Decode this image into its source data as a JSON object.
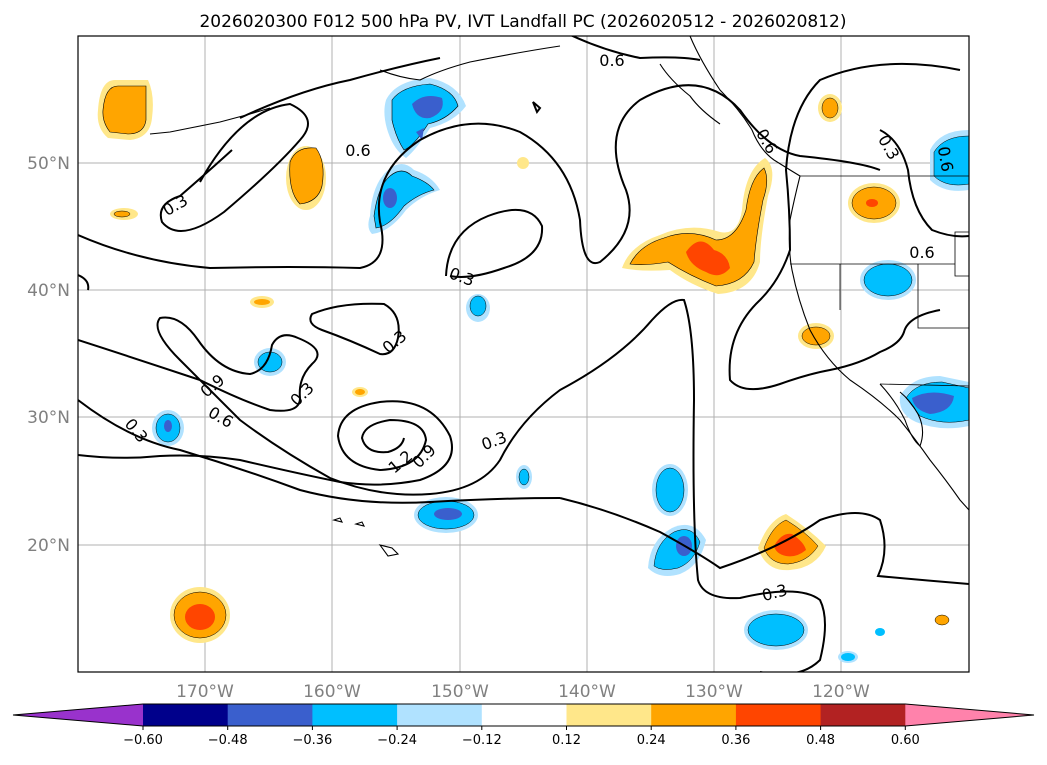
{
  "title": "2026020300 F012 500 hPa PV, IVT Landfall PC (2026020512 - 2026020812)",
  "lat_labels": [
    "50°N",
    "40°N",
    "30°N",
    "20°N"
  ],
  "lon_labels": [
    "170°W",
    "160°W",
    "150°W",
    "140°W",
    "130°W",
    "120°W"
  ],
  "contour_labels": [
    "0.6",
    "0.6",
    "0.6",
    "0.6",
    "0.6",
    "0.3",
    "0.3",
    "0.3",
    "0.3",
    "0.3",
    "0.3",
    "0.3",
    "0.3",
    "0.9",
    "0.9",
    "0.6",
    "1.2",
    "0.3",
    "0.3"
  ],
  "colorbar": {
    "ticks": [
      "−0.60",
      "−0.48",
      "−0.36",
      "−0.24",
      "−0.12",
      "0.12",
      "0.24",
      "0.36",
      "0.48",
      "0.60"
    ],
    "colors": [
      "#9932CC",
      "#00008B",
      "#3A5FCD",
      "#00BFFF",
      "#B0E2FF",
      "#FFFFFF",
      "#FFE78A",
      "#FFA500",
      "#FF4500",
      "#B22222",
      "#FF82AB"
    ]
  },
  "shading_colors": {
    "pos_light": "#FFE78A",
    "pos_mid": "#FFA500",
    "pos_strong": "#FF4500",
    "neg_light": "#B0E2FF",
    "neg_mid": "#00BFFF",
    "neg_strong": "#3A5FCD"
  }
}
